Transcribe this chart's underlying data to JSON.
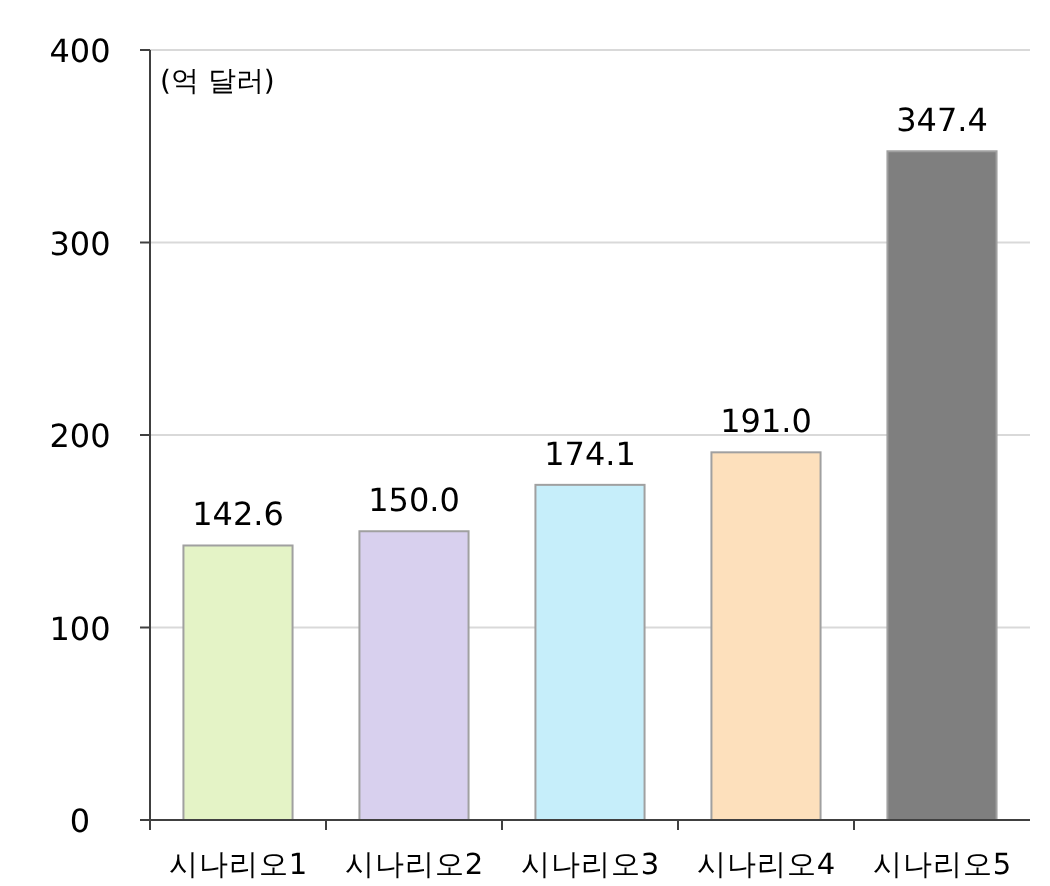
{
  "chart_data": {
    "type": "bar",
    "ylabel": "(억 달러)",
    "categories": [
      "시나리오1",
      "시나리오2",
      "시나리오3",
      "시나리오4",
      "시나리오5"
    ],
    "values": [
      142.6,
      150.0,
      174.1,
      191.0,
      347.4
    ],
    "colors": [
      "#e4f3c6",
      "#d8d0ee",
      "#c6eefa",
      "#fde0bc",
      "#7f7f7f"
    ],
    "value_labels": [
      "142.6",
      "150.0",
      "174.1",
      "191.0",
      "347.4"
    ],
    "ylim": [
      0,
      400
    ],
    "yticks": [
      0,
      100,
      200,
      300,
      400
    ],
    "grid": "y"
  }
}
